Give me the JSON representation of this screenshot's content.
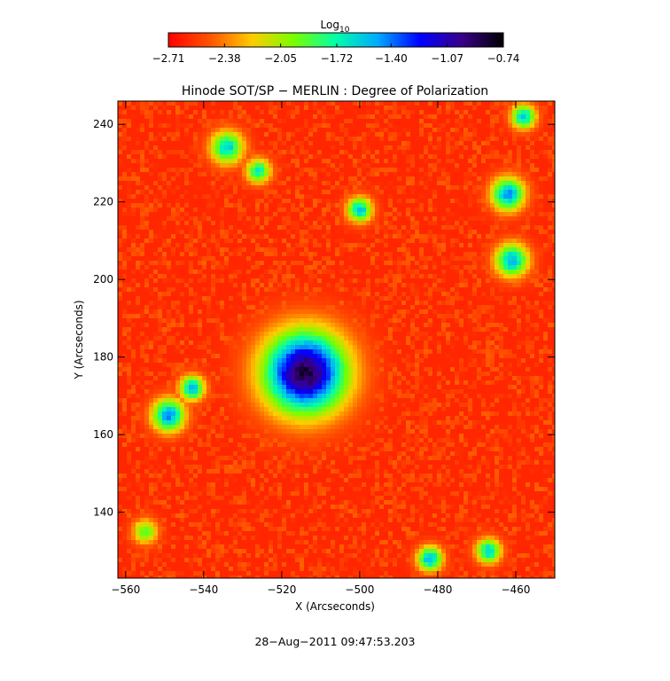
{
  "chart_data": {
    "type": "heatmap",
    "title": "Hinode SOT/SP − MERLIN : Degree of Polarization",
    "xlabel": "X (Arcseconds)",
    "ylabel": "Y (Arcseconds)",
    "timestamp": "28−Aug−2011 09:47:53.203",
    "xlim": [
      -562,
      -450
    ],
    "ylim": [
      123,
      246
    ],
    "x_ticks": [
      -560,
      -540,
      -520,
      -500,
      -480,
      -460
    ],
    "x_tick_labels": [
      "−560",
      "−540",
      "−520",
      "−500",
      "−480",
      "−460"
    ],
    "y_ticks": [
      140,
      160,
      180,
      200,
      220,
      240
    ],
    "y_tick_labels": [
      "140",
      "160",
      "180",
      "200",
      "220",
      "240"
    ],
    "colorbar": {
      "label_base": "Log",
      "label_sub": "10",
      "range": [
        -2.71,
        -0.74
      ],
      "ticks": [
        -2.71,
        -2.38,
        -2.05,
        -1.72,
        -1.4,
        -1.07,
        -0.74
      ],
      "tick_labels": [
        "−2.71",
        "−2.38",
        "−2.05",
        "−1.72",
        "−1.40",
        "−1.07",
        "−0.74"
      ],
      "colormap_stops": [
        "#ff0000",
        "#ff5500",
        "#ffcc00",
        "#77ff00",
        "#00ffaa",
        "#00aaff",
        "#0000ff",
        "#3a008a",
        "#000000"
      ]
    },
    "features": [
      {
        "x": -514,
        "y": 176,
        "value": -0.85,
        "radius": 10
      },
      {
        "x": -549,
        "y": 165,
        "value": -1.45,
        "radius": 4
      },
      {
        "x": -543,
        "y": 172,
        "value": -1.5,
        "radius": 3
      },
      {
        "x": -534,
        "y": 234,
        "value": -1.6,
        "radius": 4
      },
      {
        "x": -526,
        "y": 228,
        "value": -1.7,
        "radius": 3
      },
      {
        "x": -500,
        "y": 218,
        "value": -1.55,
        "radius": 3
      },
      {
        "x": -462,
        "y": 222,
        "value": -1.45,
        "radius": 4
      },
      {
        "x": -461,
        "y": 205,
        "value": -1.5,
        "radius": 4
      },
      {
        "x": -458,
        "y": 242,
        "value": -1.6,
        "radius": 3
      },
      {
        "x": -482,
        "y": 128,
        "value": -1.5,
        "radius": 3
      },
      {
        "x": -467,
        "y": 130,
        "value": -1.6,
        "radius": 3
      },
      {
        "x": -555,
        "y": 135,
        "value": -1.9,
        "radius": 3
      }
    ],
    "background_value": -2.6
  }
}
